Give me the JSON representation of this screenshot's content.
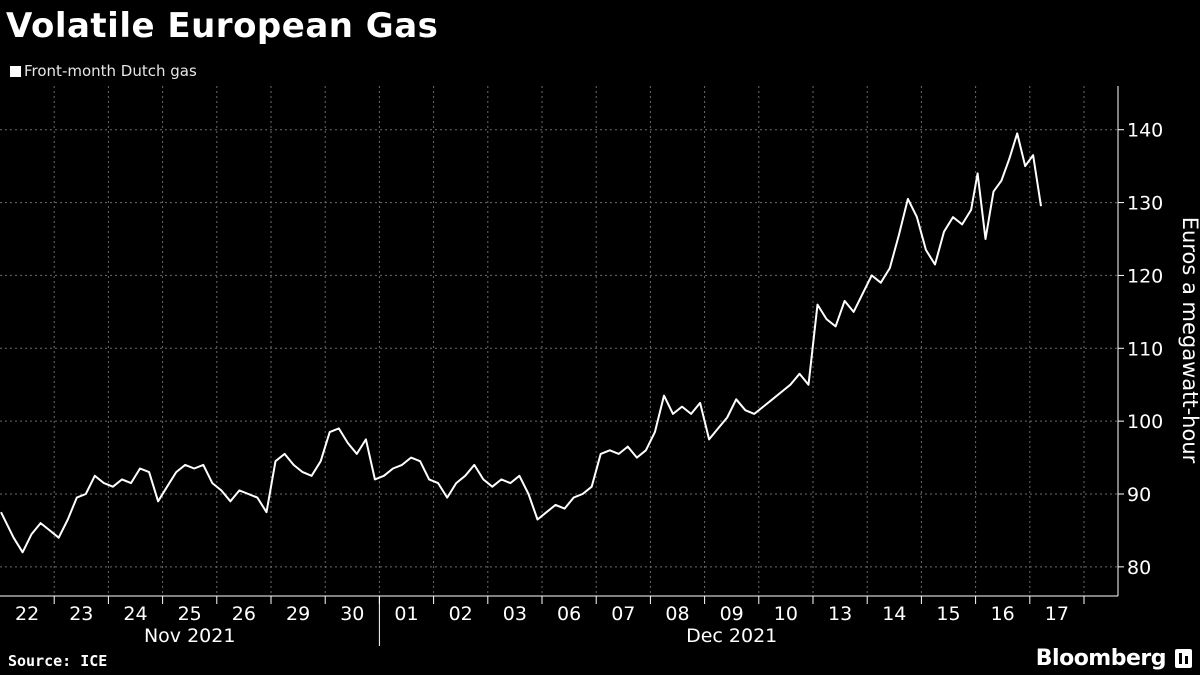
{
  "header": {
    "title": "Volatile European Gas",
    "legend_label": "Front-month Dutch gas"
  },
  "footer": {
    "source": "Source: ICE",
    "brand": "Bloomberg"
  },
  "colors": {
    "background": "#000000",
    "line": "#ffffff",
    "grid": "#6b6b6b",
    "axis_text": "#ffffff"
  },
  "chart_data": {
    "type": "line",
    "title": "Volatile European Gas",
    "ylabel": "Euros a megawatt-hour",
    "ylim": [
      76,
      146
    ],
    "yticks": [
      80,
      90,
      100,
      110,
      120,
      130,
      140
    ],
    "grid": "horizontal dotted",
    "legend_position": "top-left",
    "x_day_labels": [
      "22",
      "23",
      "24",
      "25",
      "26",
      "29",
      "30",
      "01",
      "02",
      "03",
      "06",
      "07",
      "08",
      "09",
      "10",
      "13",
      "14",
      "15",
      "16",
      "17"
    ],
    "x_month_labels": [
      "Nov 2021",
      "Dec 2021"
    ],
    "series": [
      {
        "name": "Front-month Dutch gas",
        "points": [
          {
            "date": "2021-11-22",
            "v": 87.5
          },
          {
            "date": "2021-11-22",
            "v": 84.0
          },
          {
            "date": "2021-11-22",
            "v": 82.0
          },
          {
            "date": "2021-11-22",
            "v": 84.5
          },
          {
            "date": "2021-11-22",
            "v": 86.0
          },
          {
            "date": "2021-11-22",
            "v": 85.0
          },
          {
            "date": "2021-11-23",
            "v": 84.0
          },
          {
            "date": "2021-11-23",
            "v": 86.5
          },
          {
            "date": "2021-11-23",
            "v": 89.5
          },
          {
            "date": "2021-11-23",
            "v": 90.0
          },
          {
            "date": "2021-11-23",
            "v": 92.5
          },
          {
            "date": "2021-11-23",
            "v": 91.5
          },
          {
            "date": "2021-11-24",
            "v": 91.0
          },
          {
            "date": "2021-11-24",
            "v": 92.0
          },
          {
            "date": "2021-11-24",
            "v": 91.5
          },
          {
            "date": "2021-11-24",
            "v": 93.5
          },
          {
            "date": "2021-11-24",
            "v": 93.0
          },
          {
            "date": "2021-11-24",
            "v": 89.0
          },
          {
            "date": "2021-11-25",
            "v": 91.0
          },
          {
            "date": "2021-11-25",
            "v": 93.0
          },
          {
            "date": "2021-11-25",
            "v": 94.0
          },
          {
            "date": "2021-11-25",
            "v": 93.5
          },
          {
            "date": "2021-11-25",
            "v": 94.0
          },
          {
            "date": "2021-11-25",
            "v": 91.5
          },
          {
            "date": "2021-11-26",
            "v": 90.5
          },
          {
            "date": "2021-11-26",
            "v": 89.0
          },
          {
            "date": "2021-11-26",
            "v": 90.5
          },
          {
            "date": "2021-11-26",
            "v": 90.0
          },
          {
            "date": "2021-11-26",
            "v": 89.5
          },
          {
            "date": "2021-11-26",
            "v": 87.5
          },
          {
            "date": "2021-11-29",
            "v": 94.5
          },
          {
            "date": "2021-11-29",
            "v": 95.5
          },
          {
            "date": "2021-11-29",
            "v": 94.0
          },
          {
            "date": "2021-11-29",
            "v": 93.0
          },
          {
            "date": "2021-11-29",
            "v": 92.5
          },
          {
            "date": "2021-11-29",
            "v": 94.5
          },
          {
            "date": "2021-11-30",
            "v": 98.5
          },
          {
            "date": "2021-11-30",
            "v": 99.0
          },
          {
            "date": "2021-11-30",
            "v": 97.0
          },
          {
            "date": "2021-11-30",
            "v": 95.5
          },
          {
            "date": "2021-11-30",
            "v": 97.5
          },
          {
            "date": "2021-11-30",
            "v": 92.0
          },
          {
            "date": "2021-12-01",
            "v": 92.5
          },
          {
            "date": "2021-12-01",
            "v": 93.5
          },
          {
            "date": "2021-12-01",
            "v": 94.0
          },
          {
            "date": "2021-12-01",
            "v": 95.0
          },
          {
            "date": "2021-12-01",
            "v": 94.5
          },
          {
            "date": "2021-12-01",
            "v": 92.0
          },
          {
            "date": "2021-12-02",
            "v": 91.5
          },
          {
            "date": "2021-12-02",
            "v": 89.5
          },
          {
            "date": "2021-12-02",
            "v": 91.5
          },
          {
            "date": "2021-12-02",
            "v": 92.5
          },
          {
            "date": "2021-12-02",
            "v": 94.0
          },
          {
            "date": "2021-12-02",
            "v": 92.0
          },
          {
            "date": "2021-12-03",
            "v": 91.0
          },
          {
            "date": "2021-12-03",
            "v": 92.0
          },
          {
            "date": "2021-12-03",
            "v": 91.5
          },
          {
            "date": "2021-12-03",
            "v": 92.5
          },
          {
            "date": "2021-12-03",
            "v": 90.0
          },
          {
            "date": "2021-12-03",
            "v": 86.5
          },
          {
            "date": "2021-12-06",
            "v": 87.5
          },
          {
            "date": "2021-12-06",
            "v": 88.5
          },
          {
            "date": "2021-12-06",
            "v": 88.0
          },
          {
            "date": "2021-12-06",
            "v": 89.5
          },
          {
            "date": "2021-12-06",
            "v": 90.0
          },
          {
            "date": "2021-12-06",
            "v": 91.0
          },
          {
            "date": "2021-12-07",
            "v": 95.5
          },
          {
            "date": "2021-12-07",
            "v": 96.0
          },
          {
            "date": "2021-12-07",
            "v": 95.5
          },
          {
            "date": "2021-12-07",
            "v": 96.5
          },
          {
            "date": "2021-12-07",
            "v": 95.0
          },
          {
            "date": "2021-12-07",
            "v": 96.0
          },
          {
            "date": "2021-12-08",
            "v": 98.5
          },
          {
            "date": "2021-12-08",
            "v": 103.5
          },
          {
            "date": "2021-12-08",
            "v": 101.0
          },
          {
            "date": "2021-12-08",
            "v": 102.0
          },
          {
            "date": "2021-12-08",
            "v": 101.0
          },
          {
            "date": "2021-12-08",
            "v": 102.5
          },
          {
            "date": "2021-12-09",
            "v": 97.5
          },
          {
            "date": "2021-12-09",
            "v": 99.0
          },
          {
            "date": "2021-12-09",
            "v": 100.5
          },
          {
            "date": "2021-12-09",
            "v": 103.0
          },
          {
            "date": "2021-12-09",
            "v": 101.5
          },
          {
            "date": "2021-12-09",
            "v": 101.0
          },
          {
            "date": "2021-12-10",
            "v": 102.0
          },
          {
            "date": "2021-12-10",
            "v": 103.0
          },
          {
            "date": "2021-12-10",
            "v": 104.0
          },
          {
            "date": "2021-12-10",
            "v": 105.0
          },
          {
            "date": "2021-12-10",
            "v": 106.5
          },
          {
            "date": "2021-12-10",
            "v": 105.0
          },
          {
            "date": "2021-12-13",
            "v": 116.0
          },
          {
            "date": "2021-12-13",
            "v": 114.0
          },
          {
            "date": "2021-12-13",
            "v": 113.0
          },
          {
            "date": "2021-12-13",
            "v": 116.5
          },
          {
            "date": "2021-12-13",
            "v": 115.0
          },
          {
            "date": "2021-12-13",
            "v": 117.5
          },
          {
            "date": "2021-12-14",
            "v": 120.0
          },
          {
            "date": "2021-12-14",
            "v": 119.0
          },
          {
            "date": "2021-12-14",
            "v": 121.0
          },
          {
            "date": "2021-12-14",
            "v": 125.5
          },
          {
            "date": "2021-12-14",
            "v": 130.5
          },
          {
            "date": "2021-12-14",
            "v": 128.0
          },
          {
            "date": "2021-12-15",
            "v": 123.5
          },
          {
            "date": "2021-12-15",
            "v": 121.5
          },
          {
            "date": "2021-12-15",
            "v": 126.0
          },
          {
            "date": "2021-12-15",
            "v": 128.0
          },
          {
            "date": "2021-12-15",
            "v": 127.0
          },
          {
            "date": "2021-12-15",
            "v": 129.0
          },
          {
            "date": "2021-12-16",
            "v": 134.0
          },
          {
            "date": "2021-12-16",
            "v": 125.0
          },
          {
            "date": "2021-12-16",
            "v": 131.5
          },
          {
            "date": "2021-12-16",
            "v": 133.0
          },
          {
            "date": "2021-12-16",
            "v": 136.0
          },
          {
            "date": "2021-12-16",
            "v": 139.5
          },
          {
            "date": "2021-12-16",
            "v": 135.0
          },
          {
            "date": "2021-12-16",
            "v": 136.5
          },
          {
            "date": "2021-12-16",
            "v": 129.5
          }
        ]
      }
    ]
  }
}
